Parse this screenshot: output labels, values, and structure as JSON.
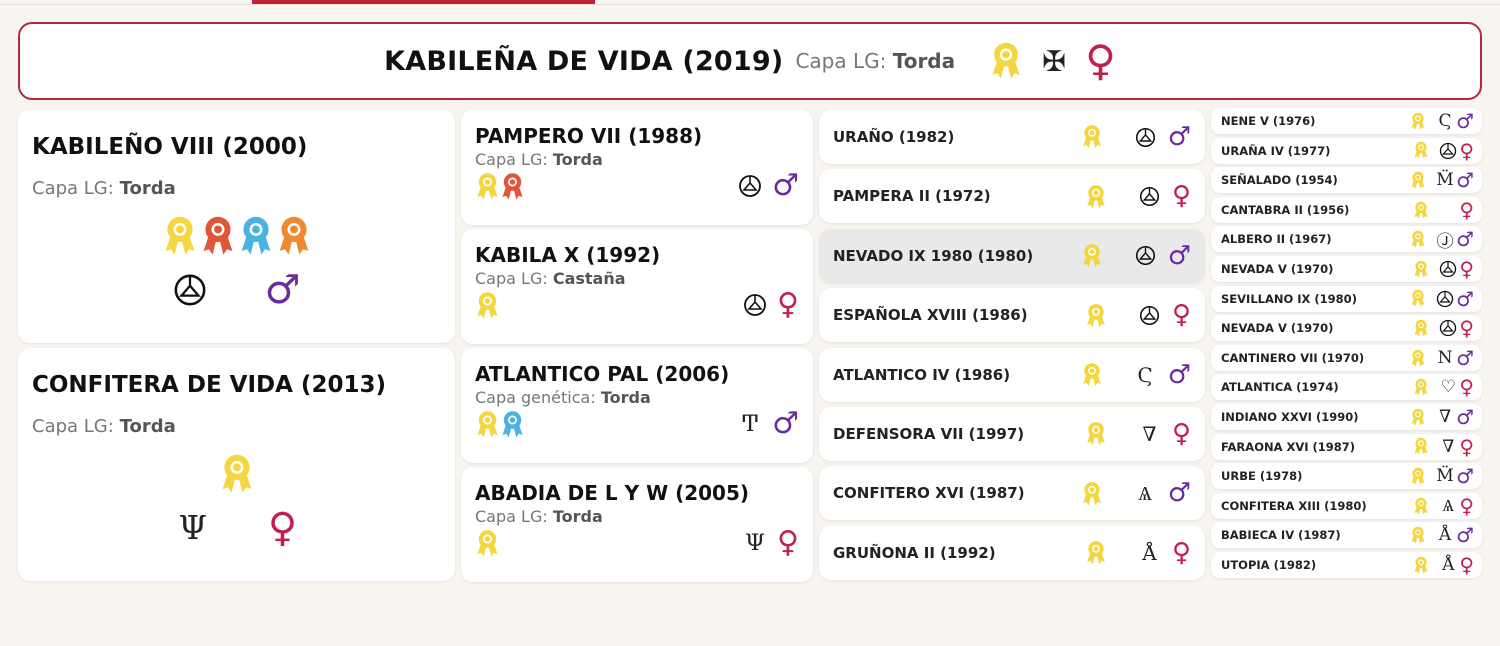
{
  "colors": {
    "accent": "#b5283f",
    "male": "#6b2b9c",
    "female": "#c21f4c",
    "ribbon_yellow": "#f4d640",
    "ribbon_red": "#df5638",
    "ribbon_blue": "#4cb2e4",
    "ribbon_orange": "#f08a2e"
  },
  "subject": {
    "name": "KABILEÑA DE VIDA (2019)",
    "coat_label": "Capa LG:",
    "coat": "Torda",
    "ribbons": [
      "yellow"
    ],
    "brand": "cross-V",
    "gender": "female"
  },
  "parents": [
    {
      "name": "KABILEÑO VIII (2000)",
      "coat_label": "Capa LG:",
      "coat": "Torda",
      "ribbons": [
        "yellow",
        "red",
        "blue",
        "orange"
      ],
      "brand": "wheel",
      "gender": "male"
    },
    {
      "name": "CONFITERA DE VIDA (2013)",
      "coat_label": "Capa LG:",
      "coat": "Torda",
      "ribbons": [
        "yellow"
      ],
      "brand": "lyre",
      "gender": "female"
    }
  ],
  "grandparents": [
    {
      "name": "PAMPERO VII (1988)",
      "coat_label": "Capa LG:",
      "coat": "Torda",
      "ribbons": [
        "yellow",
        "red"
      ],
      "brand": "wheel",
      "gender": "male"
    },
    {
      "name": "KABILA X (1992)",
      "coat_label": "Capa LG:",
      "coat": "Castaña",
      "ribbons": [
        "yellow"
      ],
      "brand": "wheel",
      "gender": "female"
    },
    {
      "name": "ATLANTICO PAL (2006)",
      "coat_label": "Capa genética:",
      "coat": "Torda",
      "ribbons": [
        "yellow",
        "blue"
      ],
      "brand": "anchor",
      "gender": "male"
    },
    {
      "name": "ABADIA DE L Y W (2005)",
      "coat_label": "Capa LG:",
      "coat": "Torda",
      "ribbons": [
        "yellow"
      ],
      "brand": "lyre",
      "gender": "female"
    }
  ],
  "great_grandparents": [
    {
      "name": "URAÑO (1982)",
      "ribbons": [
        "yellow"
      ],
      "brand": "wheel",
      "gender": "male"
    },
    {
      "name": "PAMPERA II (1972)",
      "ribbons": [
        "yellow"
      ],
      "brand": "wheel",
      "gender": "female"
    },
    {
      "name": "NEVADO IX 1980 (1980)",
      "ribbons": [
        "yellow"
      ],
      "brand": "wheel",
      "gender": "male",
      "selected": true
    },
    {
      "name": "ESPAÑOLA XVIII (1986)",
      "ribbons": [
        "yellow"
      ],
      "brand": "wheel",
      "gender": "female"
    },
    {
      "name": "ATLANTICO IV (1986)",
      "ribbons": [
        "yellow"
      ],
      "brand": "hook",
      "gender": "male"
    },
    {
      "name": "DEFENSORA VII (1997)",
      "ribbons": [
        "yellow"
      ],
      "brand": "v-shape",
      "gender": "female"
    },
    {
      "name": "CONFITERO XVI (1987)",
      "ribbons": [
        "yellow"
      ],
      "brand": "a-shape",
      "gender": "male"
    },
    {
      "name": "GRUÑONA II (1992)",
      "ribbons": [
        "yellow"
      ],
      "brand": "a-wave",
      "gender": "female"
    }
  ],
  "great_great_grandparents": [
    {
      "name": "NENE V (1976)",
      "brand": "hook",
      "gender": "male"
    },
    {
      "name": "URAÑA IV (1977)",
      "brand": "wheel",
      "gender": "female"
    },
    {
      "name": "SEÑALADO (1954)",
      "brand": "m-crown",
      "gender": "male"
    },
    {
      "name": "CANTABRA II (1956)",
      "brand": "",
      "gender": "female"
    },
    {
      "name": "ALBERO II (1967)",
      "brand": "circle-j",
      "gender": "male"
    },
    {
      "name": "NEVADA V (1970)",
      "brand": "wheel",
      "gender": "female"
    },
    {
      "name": "SEVILLANO IX (1980)",
      "brand": "wheel",
      "gender": "male"
    },
    {
      "name": "NEVADA V (1970)",
      "brand": "wheel",
      "gender": "female"
    },
    {
      "name": "CANTINERO VII (1970)",
      "brand": "n",
      "gender": "male"
    },
    {
      "name": "ATLANTICA (1974)",
      "brand": "circle-heart",
      "gender": "female"
    },
    {
      "name": "INDIANO XXVI (1990)",
      "brand": "v-shape",
      "gender": "male"
    },
    {
      "name": "FARAONA XVI (1987)",
      "brand": "v-shape",
      "gender": "female"
    },
    {
      "name": "URBE (1978)",
      "brand": "m-crown",
      "gender": "male"
    },
    {
      "name": "CONFITERA XIII (1980)",
      "brand": "a-shape",
      "gender": "female"
    },
    {
      "name": "BABIECA IV (1987)",
      "brand": "a-wave",
      "gender": "male"
    },
    {
      "name": "UTOPIA (1982)",
      "brand": "a-wave",
      "gender": "female"
    }
  ]
}
